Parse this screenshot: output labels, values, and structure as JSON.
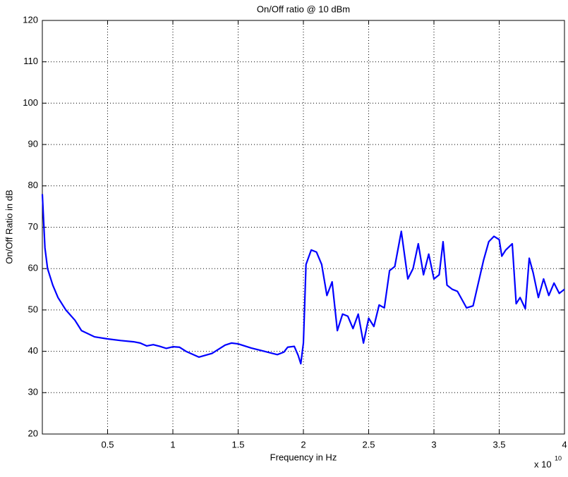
{
  "chart_data": {
    "type": "line",
    "title": "On/Off ratio @ 10 dBm",
    "x_label": "Frequency in Hz",
    "y_label": "On/Off Ratio in dB",
    "x_multiplier": {
      "base": "x 10",
      "exponent": "10"
    },
    "xlim": [
      0,
      4
    ],
    "xticks": [
      0.5,
      1,
      1.5,
      2,
      2.5,
      3,
      3.5,
      4
    ],
    "ylim": [
      20,
      120
    ],
    "yticks": [
      20,
      30,
      40,
      50,
      60,
      70,
      80,
      90,
      100,
      110,
      120
    ],
    "grid": true,
    "x": [
      0,
      0.02,
      0.04,
      0.08,
      0.12,
      0.18,
      0.25,
      0.3,
      0.4,
      0.5,
      0.6,
      0.7,
      0.75,
      0.8,
      0.85,
      0.9,
      0.95,
      1.0,
      1.05,
      1.1,
      1.2,
      1.3,
      1.4,
      1.45,
      1.5,
      1.6,
      1.7,
      1.8,
      1.85,
      1.88,
      1.93,
      1.96,
      1.98,
      2.0,
      2.02,
      2.06,
      2.1,
      2.14,
      2.18,
      2.22,
      2.26,
      2.3,
      2.34,
      2.38,
      2.42,
      2.46,
      2.5,
      2.54,
      2.58,
      2.62,
      2.66,
      2.7,
      2.75,
      2.8,
      2.84,
      2.88,
      2.92,
      2.96,
      3.0,
      3.04,
      3.07,
      3.1,
      3.14,
      3.18,
      3.25,
      3.3,
      3.38,
      3.42,
      3.46,
      3.5,
      3.52,
      3.55,
      3.6,
      3.63,
      3.66,
      3.7,
      3.73,
      3.76,
      3.8,
      3.84,
      3.88,
      3.92,
      3.96,
      4.0
    ],
    "series": [
      {
        "name": "On/Off ratio",
        "color": "#0000ff",
        "values": [
          78,
          65,
          60,
          56,
          53,
          50,
          47.5,
          45,
          43.5,
          43,
          42.6,
          42.3,
          42,
          41.3,
          41.6,
          41.2,
          40.7,
          41.1,
          41,
          40,
          38.6,
          39.5,
          41.5,
          42,
          41.8,
          40.8,
          40,
          39.2,
          39.8,
          41,
          41.2,
          39,
          37,
          42,
          61,
          64.5,
          64,
          61,
          53.5,
          56.8,
          45,
          49,
          48.5,
          45.5,
          49,
          42,
          48,
          46,
          51.2,
          50.5,
          59.5,
          60.5,
          69,
          57.5,
          60,
          66,
          58.5,
          63.5,
          57.5,
          58.5,
          66.5,
          56,
          55,
          54.5,
          50.5,
          51,
          62,
          66.5,
          67.8,
          67,
          63,
          64.5,
          66,
          51.5,
          53,
          50.3,
          62.5,
          59,
          53,
          57.5,
          53.5,
          56.5,
          54,
          55
        ]
      }
    ]
  }
}
